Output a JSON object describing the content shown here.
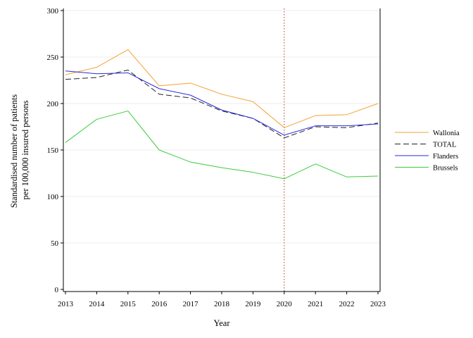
{
  "chart_data": {
    "type": "line",
    "title": "",
    "xlabel": "Year",
    "ylabel_lines": [
      "Standardised number of patients",
      "per 100,000 insured persons"
    ],
    "x": [
      2013,
      2014,
      2015,
      2016,
      2017,
      2018,
      2019,
      2020,
      2021,
      2022,
      2023
    ],
    "xlim": [
      2013,
      2023
    ],
    "ylim": [
      0,
      300
    ],
    "yticks": [
      0,
      50,
      100,
      150,
      200,
      250,
      300
    ],
    "grid": "horizontal light",
    "reference_line": {
      "x": 2020,
      "color": "#c0504d",
      "style": "dotted"
    },
    "legend_position": "right",
    "series": [
      {
        "name": "Wallonia",
        "color": "#f5a030",
        "dash": "solid",
        "values": [
          231,
          239,
          258,
          219,
          222,
          210,
          202,
          174,
          187,
          188,
          200
        ]
      },
      {
        "name": "TOTAL",
        "color": "#222222",
        "dash": "dashed",
        "values": [
          226,
          228,
          236,
          210,
          206,
          192,
          184,
          163,
          175,
          174,
          179
        ]
      },
      {
        "name": "Flanders",
        "color": "#2a2adf",
        "dash": "solid",
        "values": [
          235,
          232,
          233,
          216,
          209,
          193,
          184,
          166,
          176,
          176,
          178
        ]
      },
      {
        "name": "Brussels",
        "color": "#3ccc3c",
        "dash": "solid",
        "values": [
          158,
          183,
          192,
          150,
          137,
          131,
          126,
          119,
          135,
          121,
          122
        ]
      }
    ]
  }
}
